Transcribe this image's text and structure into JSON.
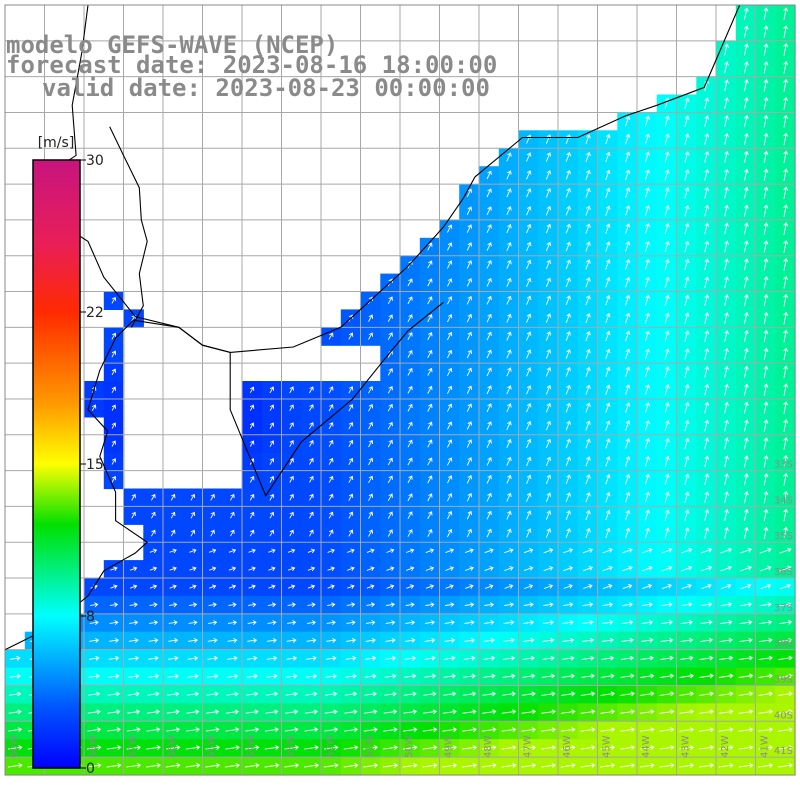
{
  "title": {
    "line1": "modelo GEFS-WAVE (NCEP)",
    "line2": "forecast date: 2023-08-16 18:00:00",
    "line3": "valid date: 2023-08-23 00:00:00"
  },
  "colorbar": {
    "unit": "[m/s]",
    "min": 0,
    "max": 30,
    "ticks": [
      {
        "value": 30,
        "label": "30"
      },
      {
        "value": 22.5,
        "label": "22"
      },
      {
        "value": 15,
        "label": "15"
      },
      {
        "value": 7.5,
        "label": "8"
      },
      {
        "value": 0,
        "label": "0"
      }
    ],
    "stops": [
      {
        "value": 0,
        "color": "#0000ff"
      },
      {
        "value": 3,
        "color": "#0055ff"
      },
      {
        "value": 7.5,
        "color": "#00ffff"
      },
      {
        "value": 12,
        "color": "#00e000"
      },
      {
        "value": 15,
        "color": "#ffff00"
      },
      {
        "value": 18,
        "color": "#ff9900"
      },
      {
        "value": 22.5,
        "color": "#ff2a00"
      },
      {
        "value": 26,
        "color": "#e81e5a"
      },
      {
        "value": 30,
        "color": "#c8147e"
      }
    ]
  },
  "map": {
    "extent": {
      "lon_min": -60,
      "lon_max": -40,
      "lat_min": -41.5,
      "lat_max": -20
    },
    "grid_step_deg": 1,
    "cell_deg": 0.5,
    "arrow_color": "#ffffff",
    "coast_color": "#000000",
    "grid_color": "#a8a8a8",
    "lat_labels": [
      "33S",
      "34S",
      "35S",
      "36S",
      "37S",
      "38S",
      "39S",
      "40S",
      "41S"
    ],
    "lon_labels": [
      "60W",
      "59W",
      "58W",
      "57W",
      "56W",
      "55W",
      "54W",
      "53W",
      "52W",
      "51W",
      "50W",
      "49W",
      "48W",
      "47W",
      "46W",
      "45W",
      "44W",
      "43W",
      "42W",
      "41W"
    ]
  }
}
